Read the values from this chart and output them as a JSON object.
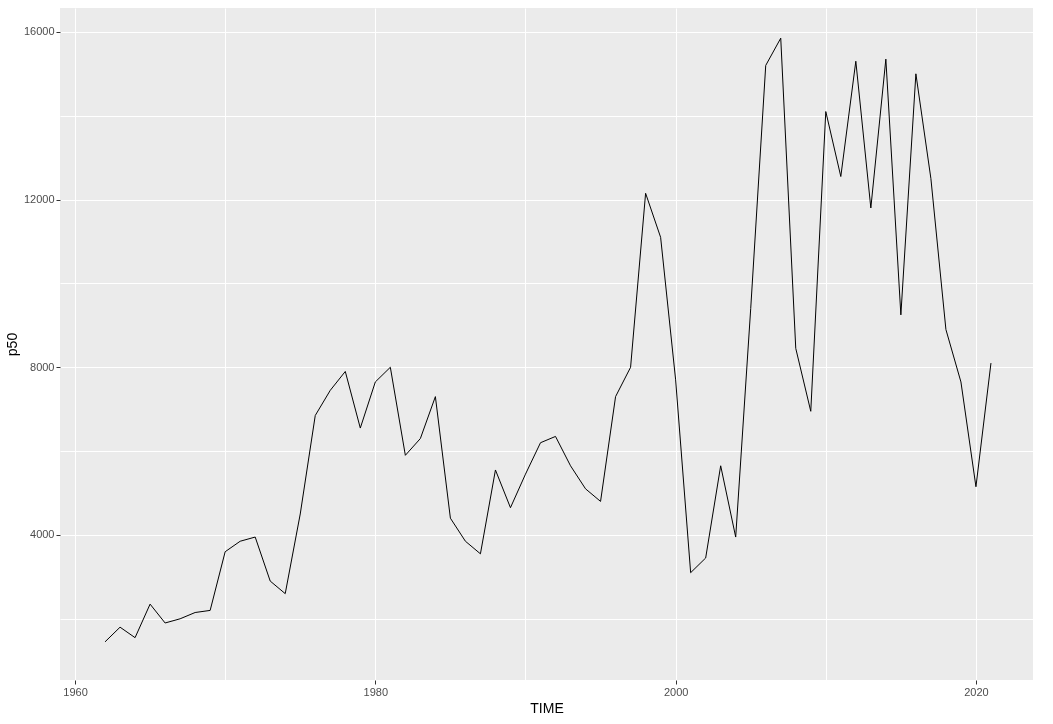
{
  "chart_data": {
    "type": "line",
    "xlabel": "TIME",
    "ylabel": "p50",
    "grid": true,
    "x": [
      1962,
      1963,
      1964,
      1965,
      1966,
      1967,
      1968,
      1969,
      1970,
      1971,
      1972,
      1973,
      1974,
      1975,
      1976,
      1977,
      1978,
      1979,
      1980,
      1981,
      1982,
      1983,
      1984,
      1985,
      1986,
      1987,
      1988,
      1989,
      1990,
      1991,
      1992,
      1993,
      1994,
      1995,
      1996,
      1997,
      1998,
      1999,
      2000,
      2001,
      2002,
      2003,
      2004,
      2005,
      2006,
      2007,
      2008,
      2009,
      2010,
      2011,
      2012,
      2013,
      2014,
      2015,
      2016,
      2017,
      2018,
      2019,
      2020,
      2021
    ],
    "series": [
      {
        "color": "#000000",
        "values": [
          1450,
          1800,
          1550,
          2350,
          1900,
          2000,
          2150,
          2200,
          3600,
          3850,
          3950,
          2900,
          2600,
          4500,
          6850,
          7450,
          7900,
          6550,
          7650,
          8000,
          5900,
          6300,
          7300,
          4400,
          3850,
          3550,
          5550,
          4650,
          5450,
          6200,
          6350,
          5650,
          5100,
          4800,
          7300,
          8000,
          12150,
          11100,
          7700,
          3100,
          3450,
          5650,
          3950,
          9400,
          15200,
          15850,
          8450,
          6950,
          14100,
          12550,
          15300,
          11800,
          15350,
          9250,
          15000,
          12500,
          8900,
          7650,
          5150,
          8100
        ]
      }
    ],
    "xlim": [
      1959,
      2023.8
    ],
    "ylim": [
      540,
      16570
    ],
    "xticks": [
      1960,
      {
        "value": 1970,
        "label": null
      },
      1980,
      {
        "value": 1990,
        "label": null
      },
      2000,
      {
        "value": 2010,
        "label": null
      },
      2020
    ],
    "yticks": [
      {
        "value": 2000,
        "label": null
      },
      4000,
      {
        "value": 6000,
        "label": null
      },
      8000,
      {
        "value": 10000,
        "label": null
      },
      12000,
      {
        "value": 14000,
        "label": null
      },
      16000
    ],
    "marker": "none",
    "line_style": "solid"
  }
}
